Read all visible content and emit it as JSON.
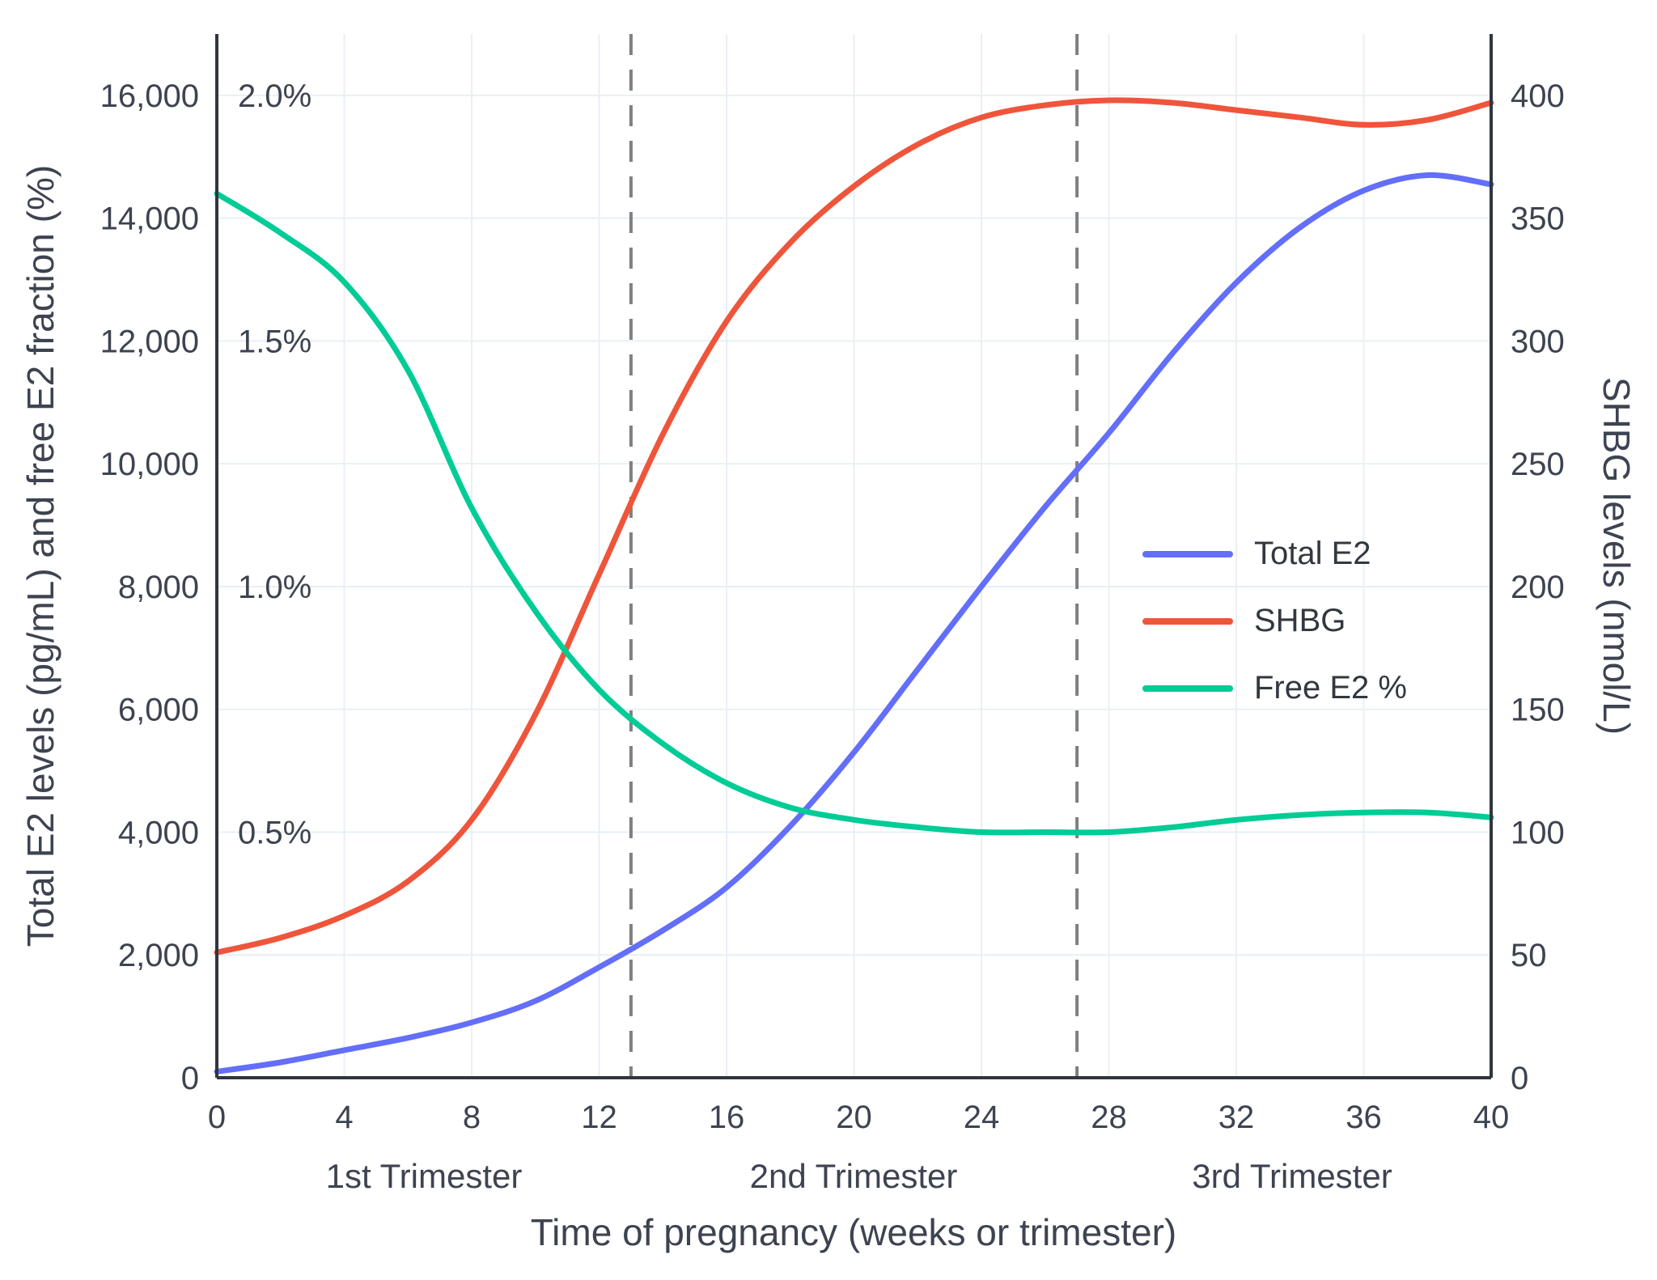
{
  "chart_data": {
    "type": "line",
    "title": "",
    "xlabel": "Time of pregnancy (weeks or trimester)",
    "ylabel_left": "Total E2 levels (pg/mL) and free E2 fraction (%)",
    "ylabel_right": "SHBG levels (nmol/L)",
    "x_range": [
      0,
      40
    ],
    "x_ticks": [
      0,
      4,
      8,
      12,
      16,
      20,
      24,
      28,
      32,
      36,
      40
    ],
    "left_axis": {
      "max": 17000,
      "ticks": [
        0,
        2000,
        4000,
        6000,
        8000,
        10000,
        12000,
        14000,
        16000
      ]
    },
    "right_axis": {
      "max": 425,
      "ticks": [
        0,
        50,
        100,
        150,
        200,
        250,
        300,
        350,
        400
      ]
    },
    "percent_labels": [
      {
        "value": 16000,
        "label": "2.0%"
      },
      {
        "value": 12000,
        "label": "1.5%"
      },
      {
        "value": 8000,
        "label": "1.0%"
      },
      {
        "value": 4000,
        "label": "0.5%"
      }
    ],
    "percent_to_left_axis_factor": 8000,
    "trimester_boundaries": [
      13,
      27
    ],
    "trimester_labels": [
      {
        "label": "1st Trimester"
      },
      {
        "label": "2nd Trimester"
      },
      {
        "label": "3rd Trimester"
      }
    ],
    "legend_position": "middle-right",
    "grid": true,
    "series": [
      {
        "name": "Total E2",
        "axis": "left",
        "units": "pg/mL",
        "color": "#636EFA",
        "x": [
          0,
          2,
          4,
          6,
          8,
          10,
          12,
          14,
          16,
          18,
          20,
          22,
          24,
          26,
          28,
          30,
          32,
          34,
          36,
          38,
          40
        ],
        "y": [
          100,
          250,
          450,
          650,
          900,
          1250,
          1800,
          2400,
          3100,
          4100,
          5300,
          6650,
          8000,
          9300,
          10500,
          11800,
          12950,
          13850,
          14450,
          14700,
          14550
        ]
      },
      {
        "name": "SHBG",
        "axis": "right",
        "units": "nmol/L",
        "color": "#EF553B",
        "x": [
          0,
          2,
          4,
          6,
          8,
          10,
          12,
          14,
          16,
          18,
          20,
          22,
          24,
          26,
          28,
          30,
          32,
          34,
          36,
          38,
          40
        ],
        "y": [
          51,
          57,
          66,
          80,
          105,
          148,
          205,
          262,
          308,
          340,
          363,
          380,
          391,
          396,
          398,
          397,
          394,
          391,
          388,
          390,
          397
        ]
      },
      {
        "name": "Free E2 %",
        "axis": "left_percent",
        "units": "%",
        "color": "#00CC96",
        "x": [
          0,
          2,
          4,
          6,
          8,
          10,
          12,
          14,
          16,
          18,
          20,
          22,
          24,
          26,
          28,
          30,
          32,
          34,
          36,
          38,
          40
        ],
        "y": [
          1.8,
          1.72,
          1.62,
          1.44,
          1.16,
          0.95,
          0.79,
          0.68,
          0.6,
          0.55,
          0.525,
          0.51,
          0.5,
          0.5,
          0.5,
          0.51,
          0.525,
          0.535,
          0.54,
          0.54,
          0.53
        ]
      }
    ],
    "style": {
      "grid_color": "#E9EFF7",
      "spine_color": "#30363f",
      "text_color": "#3d4350",
      "dashed_color": "#7f7f7f",
      "background": "#ffffff"
    }
  }
}
